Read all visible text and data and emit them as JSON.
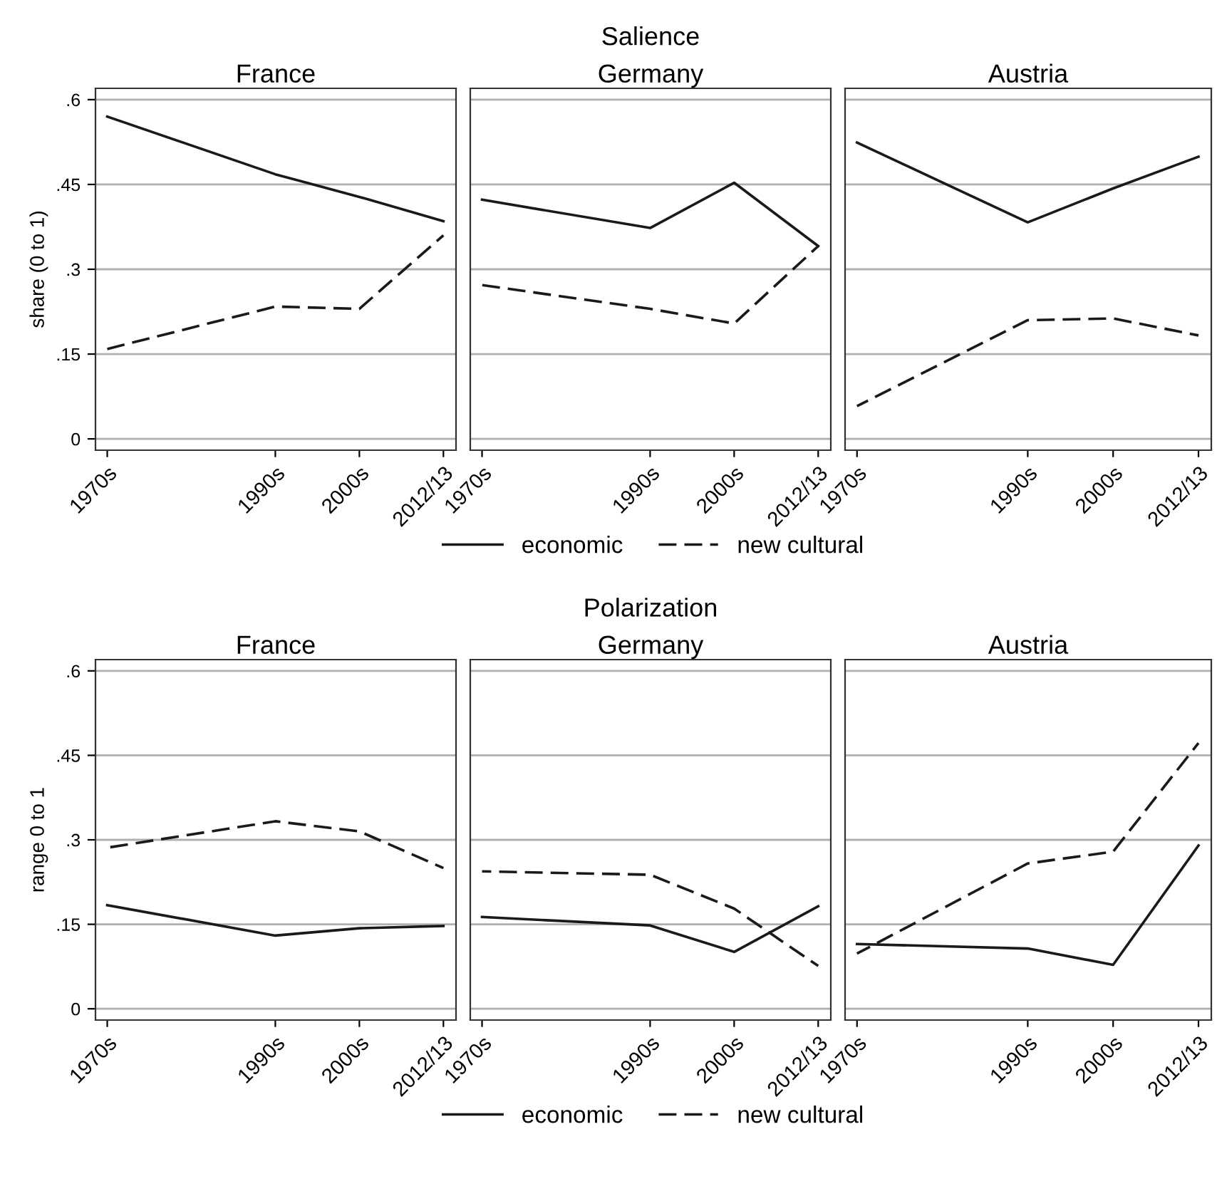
{
  "chart_data": [
    {
      "type": "line",
      "subtitle": "France",
      "ylabel": "share (0 to 1)",
      "x": [
        1970,
        1990,
        2000,
        2010
      ],
      "series": [
        {
          "name": "economic",
          "color": "#1a1a1a",
          "line_style": "solid",
          "values": [
            0.57,
            0.468,
            0.428,
            0.385
          ]
        },
        {
          "name": "new cultural",
          "color": "#1a1a1a",
          "line_style": "dashed",
          "values": [
            0.159,
            0.234,
            0.23,
            0.36
          ]
        }
      ],
      "xlim": [
        1968.6,
        2011.5
      ],
      "ylim": [
        -0.02,
        0.62
      ],
      "xticks": [
        {
          "value": 1970,
          "label": "1970s"
        },
        {
          "value": 1990,
          "label": "1990s"
        },
        {
          "value": 2000,
          "label": "2000s"
        },
        {
          "value": 2010,
          "label": "2012/13"
        }
      ],
      "yticks": [
        {
          "value": 0,
          "label": "0"
        },
        {
          "value": 0.15,
          "label": ".15"
        },
        {
          "value": 0.3,
          "label": ".3"
        },
        {
          "value": 0.45,
          "label": ".45"
        },
        {
          "value": 0.6,
          "label": ".6"
        }
      ],
      "grid": "y",
      "legend": "bottom"
    },
    {
      "type": "line",
      "title": "Salience",
      "subtitle": "Germany",
      "x": [
        1970,
        1990,
        2000,
        2010
      ],
      "series": [
        {
          "color": "#1a1a1a",
          "line_style": "solid",
          "values": [
            0.423,
            0.373,
            0.453,
            0.341
          ]
        },
        {
          "color": "#1a1a1a",
          "line_style": "dashed",
          "values": [
            0.272,
            0.23,
            0.204,
            0.341
          ]
        }
      ],
      "xlim": [
        1968.6,
        2011.5
      ],
      "ylim": [
        -0.02,
        0.62
      ],
      "xticks": [
        {
          "value": 1970,
          "label": "1970s"
        },
        {
          "value": 1990,
          "label": "1990s"
        },
        {
          "value": 2000,
          "label": "2000s"
        },
        {
          "value": 2010,
          "label": "2012/13"
        }
      ],
      "yticks": [
        {
          "value": 0,
          "label": null
        },
        {
          "value": 0.15,
          "label": null
        },
        {
          "value": 0.3,
          "label": null
        },
        {
          "value": 0.45,
          "label": null
        },
        {
          "value": 0.6,
          "label": null
        }
      ],
      "grid": "y",
      "tick_labels": "x"
    },
    {
      "type": "line",
      "subtitle": "Austria",
      "x": [
        1970,
        1990,
        2000,
        2010
      ],
      "series": [
        {
          "color": "#1a1a1a",
          "line_style": "solid",
          "values": [
            0.524,
            0.383,
            0.443,
            0.499
          ]
        },
        {
          "color": "#1a1a1a",
          "line_style": "dashed",
          "values": [
            0.058,
            0.21,
            0.213,
            0.183
          ]
        }
      ],
      "xlim": [
        1968.6,
        2011.5
      ],
      "ylim": [
        -0.02,
        0.62
      ],
      "xticks": [
        {
          "value": 1970,
          "label": "1970s"
        },
        {
          "value": 1990,
          "label": "1990s"
        },
        {
          "value": 2000,
          "label": "2000s"
        },
        {
          "value": 2010,
          "label": "2012/13"
        }
      ],
      "yticks": [
        {
          "value": 0,
          "label": null
        },
        {
          "value": 0.15,
          "label": null
        },
        {
          "value": 0.3,
          "label": null
        },
        {
          "value": 0.45,
          "label": null
        },
        {
          "value": 0.6,
          "label": null
        }
      ],
      "grid": "y",
      "tick_labels": "x"
    },
    {
      "type": "line",
      "subtitle": "France",
      "ylabel": "range 0 to 1",
      "x": [
        1970,
        1990,
        2000,
        2010
      ],
      "series": [
        {
          "name": "economic",
          "color": "#1a1a1a",
          "line_style": "solid",
          "values": [
            0.184,
            0.13,
            0.143,
            0.147
          ]
        },
        {
          "name": "new cultural",
          "color": "#1a1a1a",
          "line_style": "dashed",
          "values": [
            0.286,
            0.333,
            0.315,
            0.25
          ]
        }
      ],
      "xlim": [
        1968.6,
        2011.5
      ],
      "ylim": [
        -0.02,
        0.62
      ],
      "xticks": [
        {
          "value": 1970,
          "label": "1970s"
        },
        {
          "value": 1990,
          "label": "1990s"
        },
        {
          "value": 2000,
          "label": "2000s"
        },
        {
          "value": 2010,
          "label": "2012/13"
        }
      ],
      "yticks": [
        {
          "value": 0,
          "label": "0"
        },
        {
          "value": 0.15,
          "label": ".15"
        },
        {
          "value": 0.3,
          "label": ".3"
        },
        {
          "value": 0.45,
          "label": ".45"
        },
        {
          "value": 0.6,
          "label": ".6"
        }
      ],
      "grid": "y",
      "legend": "bottom"
    },
    {
      "type": "line",
      "title": "Polarization",
      "subtitle": "Germany",
      "x": [
        1970,
        1990,
        2000,
        2010
      ],
      "series": [
        {
          "color": "#1a1a1a",
          "line_style": "solid",
          "values": [
            0.163,
            0.148,
            0.101,
            0.182
          ]
        },
        {
          "color": "#1a1a1a",
          "line_style": "dashed",
          "values": [
            0.244,
            0.238,
            0.178,
            0.076
          ]
        }
      ],
      "xlim": [
        1968.6,
        2011.5
      ],
      "ylim": [
        -0.02,
        0.62
      ],
      "xticks": [
        {
          "value": 1970,
          "label": "1970s"
        },
        {
          "value": 1990,
          "label": "1990s"
        },
        {
          "value": 2000,
          "label": "2000s"
        },
        {
          "value": 2010,
          "label": "2012/13"
        }
      ],
      "yticks": [
        {
          "value": 0,
          "label": null
        },
        {
          "value": 0.15,
          "label": null
        },
        {
          "value": 0.3,
          "label": null
        },
        {
          "value": 0.45,
          "label": null
        },
        {
          "value": 0.6,
          "label": null
        }
      ],
      "grid": "y",
      "tick_labels": "x"
    },
    {
      "type": "line",
      "subtitle": "Austria",
      "x": [
        1970,
        1990,
        2000,
        2010
      ],
      "series": [
        {
          "color": "#1a1a1a",
          "line_style": "solid",
          "values": [
            0.115,
            0.107,
            0.078,
            0.29
          ]
        },
        {
          "color": "#1a1a1a",
          "line_style": "dashed",
          "values": [
            0.098,
            0.258,
            0.279,
            0.472
          ]
        }
      ],
      "xlim": [
        1968.6,
        2011.5
      ],
      "ylim": [
        -0.02,
        0.62
      ],
      "xticks": [
        {
          "value": 1970,
          "label": "1970s"
        },
        {
          "value": 1990,
          "label": "1990s"
        },
        {
          "value": 2000,
          "label": "2000s"
        },
        {
          "value": 2010,
          "label": "2012/13"
        }
      ],
      "yticks": [
        {
          "value": 0,
          "label": null
        },
        {
          "value": 0.15,
          "label": null
        },
        {
          "value": 0.3,
          "label": null
        },
        {
          "value": 0.45,
          "label": null
        },
        {
          "value": 0.6,
          "label": null
        }
      ],
      "grid": "y",
      "tick_labels": "x"
    }
  ]
}
